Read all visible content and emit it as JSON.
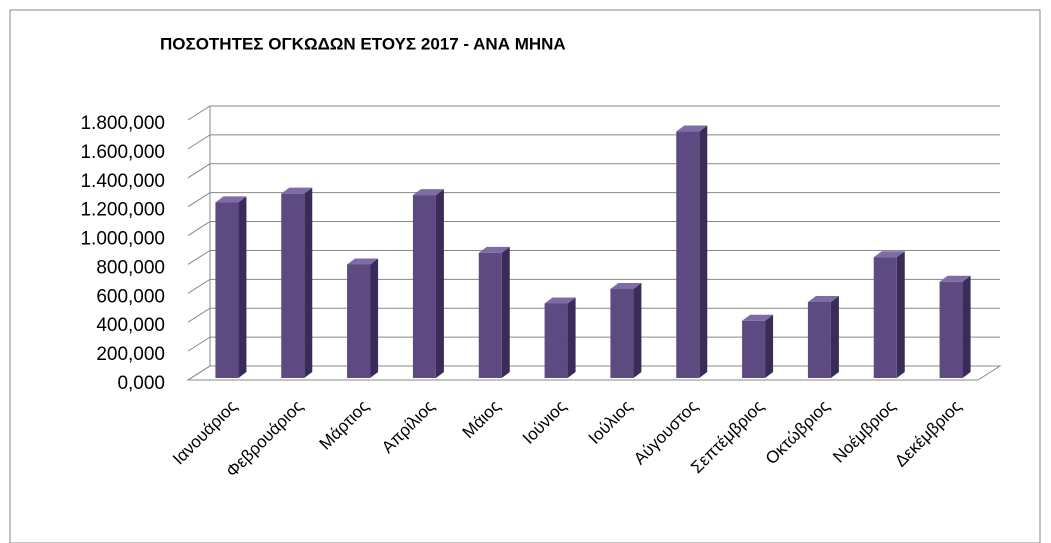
{
  "chart_data": {
    "type": "bar3d",
    "title": "ΠΟΣΟΤΗΤΕΣ ΟΓΚΩΔΩΝ ΕΤΟΥΣ 2017 - ΑΝΑ ΜΗΝΑ",
    "categories": [
      "Ιανουάριος",
      "Φεβρουάριος",
      "Μάρτιος",
      "Απρίλιος",
      "Μάιος",
      "Ιούνιος",
      "Ιούλιος",
      "Αύγουστος",
      "Σεπτέμβριος",
      "Οκτώβριος",
      "Νοέμβριος",
      "Δεκέμβριος"
    ],
    "values": [
      1230,
      1290,
      800,
      1280,
      880,
      530,
      630,
      1720,
      410,
      540,
      850,
      680
    ],
    "color": "#5c4a80",
    "ylim": [
      0,
      1800
    ],
    "yticks": [
      {
        "value": 0,
        "label": "0,000"
      },
      {
        "value": 200,
        "label": "200,000"
      },
      {
        "value": 400,
        "label": "400,000"
      },
      {
        "value": 600,
        "label": "600,000"
      },
      {
        "value": 800,
        "label": "800,000"
      },
      {
        "value": 1000,
        "label": "1.000,000"
      },
      {
        "value": 1200,
        "label": "1.200,000"
      },
      {
        "value": 1400,
        "label": "1.400,000"
      },
      {
        "value": 1600,
        "label": "1.600,000"
      },
      {
        "value": 1800,
        "label": "1.800,000"
      }
    ],
    "grid": true
  }
}
